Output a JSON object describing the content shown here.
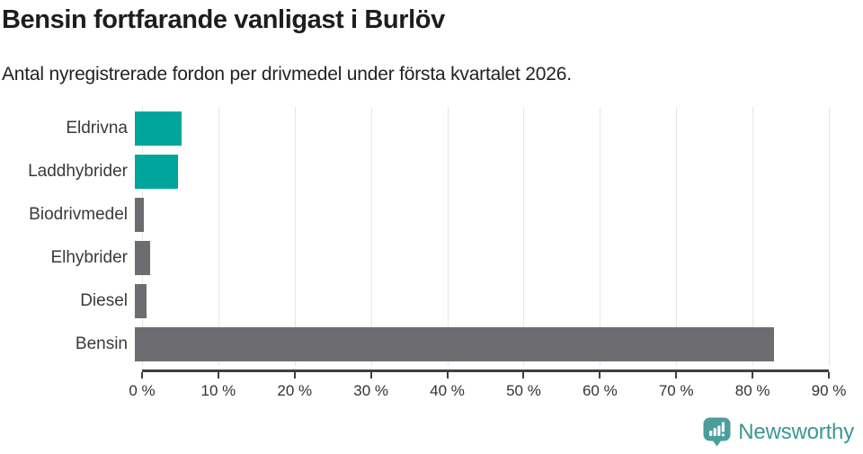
{
  "title": "Bensin fortfarande vanligast i Burlöv",
  "subtitle": "Antal nyregistrerade fordon per drivmedel under första kvartalet 2026.",
  "chart_data": {
    "type": "bar",
    "orientation": "horizontal",
    "title": "Bensin fortfarande vanligast i Burlöv",
    "subtitle": "Antal nyregistrerade fordon per drivmedel under första kvartalet 2026.",
    "categories": [
      "Eldrivna",
      "Laddhybrider",
      "Biodrivmedel",
      "Elhybrider",
      "Diesel",
      "Bensin"
    ],
    "values": [
      6.1,
      5.7,
      1.2,
      2.0,
      1.5,
      83.8
    ],
    "unit": "%",
    "xlim": [
      0,
      90
    ],
    "x_ticks": [
      0,
      10,
      20,
      30,
      40,
      50,
      60,
      70,
      80,
      90
    ],
    "x_tick_labels": [
      "0 %",
      "10 %",
      "20 %",
      "30 %",
      "40 %",
      "50 %",
      "60 %",
      "70 %",
      "80 %",
      "90 %"
    ],
    "grid": "vertical",
    "legend": "none",
    "bar_colors": [
      "#00a59c",
      "#00a59c",
      "#6d6c71",
      "#6d6c71",
      "#6d6c71",
      "#6d6c71"
    ]
  },
  "colors": {
    "highlight_teal": "#00a59c",
    "bar_gray": "#6d6c71",
    "gridline": "#e6e6e6",
    "axis": "#3f3f3f",
    "brand_teal": "#3a9794",
    "logo_teal": "#4a9e9c"
  },
  "footer": {
    "brand": "Newsworthy"
  }
}
